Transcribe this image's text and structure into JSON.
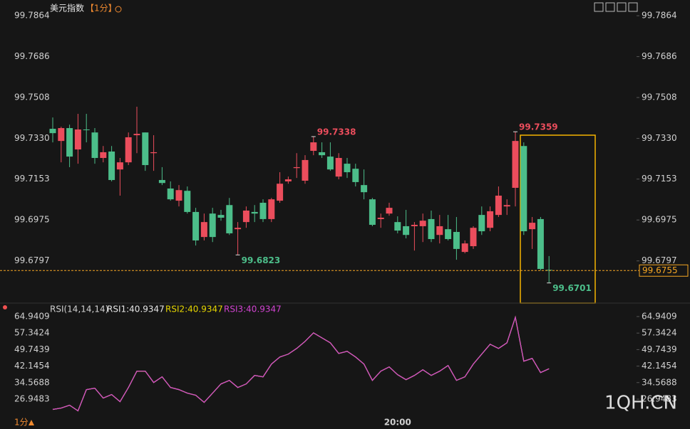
{
  "chart_data": [
    {
      "type": "candlestick",
      "title": "美元指数",
      "period": "【1分】",
      "period_label": "1分",
      "categories": [
        null,
        null,
        null,
        null,
        null,
        null,
        null,
        null,
        null,
        null,
        null,
        null,
        null,
        null,
        null,
        null,
        null,
        null,
        null,
        null,
        null,
        null,
        null,
        null,
        null,
        null,
        null,
        null,
        null,
        null,
        null,
        null,
        null,
        null,
        null,
        null,
        null,
        null,
        null,
        null,
        null,
        "20:00",
        null,
        null,
        null,
        null,
        null,
        null,
        null,
        null,
        null,
        null,
        null,
        null,
        null,
        null,
        null,
        null,
        null,
        null
      ],
      "open": [
        99.7372,
        99.7319,
        99.7375,
        99.7282,
        99.7369,
        99.7356,
        99.7245,
        99.7273,
        99.7195,
        99.7226,
        99.7344,
        99.7356,
        99.7266,
        99.7149,
        99.7112,
        99.7059,
        99.7102,
        99.701,
        99.6901,
        99.7003,
        99.6997,
        99.704,
        99.6935,
        99.6966,
        99.701,
        99.705,
        99.6979,
        99.7059,
        99.7143,
        99.7201,
        99.7146,
        99.7276,
        99.727,
        99.7251,
        99.7164,
        99.722,
        99.7198,
        99.7127,
        99.7065,
        99.6979,
        99.7003,
        99.6966,
        99.6948,
        99.6948,
        99.6948,
        99.6979,
        99.691,
        99.6935,
        99.6923,
        99.6836,
        99.6861,
        99.6997,
        99.6941,
        99.6997,
        99.7034,
        99.7115,
        99.7297,
        99.6935,
        99.6979,
        99.6758
      ],
      "high": [
        99.7421,
        99.7381,
        99.739,
        99.7437,
        99.7437,
        99.7375,
        99.7297,
        99.7297,
        99.7245,
        99.7356,
        99.7468,
        99.7356,
        99.7344,
        99.7205,
        99.7143,
        99.7127,
        99.7121,
        99.7028,
        99.7003,
        99.7028,
        99.7019,
        99.7071,
        99.6966,
        99.7034,
        99.704,
        99.7065,
        99.7071,
        99.7183,
        99.7164,
        99.7266,
        99.7257,
        99.7338,
        99.7313,
        99.7313,
        99.7266,
        99.7245,
        99.722,
        99.7195,
        99.7071,
        99.7003,
        99.705,
        99.6991,
        99.7019,
        99.6966,
        99.7003,
        99.7016,
        99.6997,
        99.6997,
        99.6988,
        99.6886,
        99.6948,
        99.7034,
        99.7034,
        99.7121,
        99.7065,
        99.7359,
        99.7313,
        99.6988,
        99.6988,
        99.6818
      ],
      "low": [
        99.7313,
        99.7226,
        99.7205,
        99.722,
        99.7313,
        99.722,
        99.7226,
        99.7143,
        99.7081,
        99.7214,
        99.7266,
        99.7189,
        99.7189,
        99.7127,
        99.7059,
        99.7034,
        99.7003,
        99.6864,
        99.6886,
        99.6879,
        99.6972,
        99.691,
        99.6823,
        99.6941,
        99.6966,
        99.6966,
        99.6966,
        99.705,
        99.7133,
        99.7158,
        99.7133,
        99.7257,
        99.7245,
        99.7189,
        99.7152,
        99.7158,
        99.7121,
        99.7065,
        99.6948,
        99.6941,
        99.6994,
        99.6917,
        99.6895,
        99.6842,
        99.6879,
        99.6879,
        99.6873,
        99.6886,
        99.6802,
        99.683,
        99.6849,
        99.691,
        99.6926,
        99.6988,
        99.6997,
        99.7034,
        99.691,
        99.6849,
        99.6756,
        99.6701
      ],
      "close": [
        99.7353,
        99.7375,
        99.7251,
        99.7369,
        99.7366,
        99.7245,
        99.727,
        99.7149,
        99.7226,
        99.7335,
        99.735,
        99.7214,
        99.727,
        99.7136,
        99.7065,
        99.7105,
        99.701,
        99.6886,
        99.6966,
        99.6901,
        99.6985,
        99.6917,
        99.6941,
        99.7016,
        99.7003,
        99.6979,
        99.7065,
        99.7133,
        99.7152,
        99.7205,
        99.7236,
        99.7313,
        99.7257,
        99.7195,
        99.7245,
        99.7183,
        99.714,
        99.7096,
        99.6954,
        99.6985,
        99.7028,
        99.6929,
        99.691,
        99.6954,
        99.6972,
        99.6892,
        99.6948,
        99.6892,
        99.6849,
        99.6873,
        99.6941,
        99.6926,
        99.7013,
        99.7081,
        99.704,
        99.7319,
        99.6926,
        99.6963,
        99.6762,
        99.6755
      ],
      "up_color": "#eb4d5c",
      "down_color": "#4cbe8a",
      "ylim": [
        99.6632,
        99.7917
      ],
      "yticks": [
        99.7864,
        99.7686,
        99.7508,
        {
          "value": 99.733,
          "label": "99.7330"
        },
        99.7153,
        99.6975,
        99.6797
      ],
      "last_price": 99.6755,
      "last_price_color": "#f5a623"
    },
    {
      "type": "line",
      "title": "RSI(14,14,14)",
      "series": [
        {
          "name": "RSI1:40.9347",
          "color": "#e6e6e6",
          "values": [
            22.22,
            22.87,
            24.18,
            21.57,
            31.35,
            32.0,
            27.44,
            29.07,
            25.81,
            32.33,
            39.83,
            39.83,
            34.61,
            37.22,
            32.33,
            31.35,
            29.72,
            28.74,
            25.48,
            29.72,
            33.96,
            35.59,
            32.33,
            33.96,
            37.87,
            37.22,
            43.09,
            46.35,
            47.66,
            50.27,
            53.53,
            57.44,
            55.16,
            52.87,
            47.98,
            48.96,
            46.35,
            43.09,
            35.59,
            39.83,
            41.79,
            38.2,
            35.92,
            37.87,
            40.48,
            37.87,
            39.83,
            42.44,
            35.59,
            37.22,
            43.09,
            47.66,
            52.22,
            50.27,
            52.87,
            64.61,
            44.4,
            45.7,
            39.18,
            40.9347
          ]
        },
        {
          "name": "RSI2:40.9347",
          "color": "#e6d600",
          "values": [
            22.22,
            22.87,
            24.18,
            21.57,
            31.35,
            32.0,
            27.44,
            29.07,
            25.81,
            32.33,
            39.83,
            39.83,
            34.61,
            37.22,
            32.33,
            31.35,
            29.72,
            28.74,
            25.48,
            29.72,
            33.96,
            35.59,
            32.33,
            33.96,
            37.87,
            37.22,
            43.09,
            46.35,
            47.66,
            50.27,
            53.53,
            57.44,
            55.16,
            52.87,
            47.98,
            48.96,
            46.35,
            43.09,
            35.59,
            39.83,
            41.79,
            38.2,
            35.92,
            37.87,
            40.48,
            37.87,
            39.83,
            42.44,
            35.59,
            37.22,
            43.09,
            47.66,
            52.22,
            50.27,
            52.87,
            64.61,
            44.4,
            45.7,
            39.18,
            40.9347
          ]
        },
        {
          "name": "RSI3:40.9347",
          "color": "#d043d0",
          "values": [
            22.22,
            22.87,
            24.18,
            21.57,
            31.35,
            32.0,
            27.44,
            29.07,
            25.81,
            32.33,
            39.83,
            39.83,
            34.61,
            37.22,
            32.33,
            31.35,
            29.72,
            28.74,
            25.48,
            29.72,
            33.96,
            35.59,
            32.33,
            33.96,
            37.87,
            37.22,
            43.09,
            46.35,
            47.66,
            50.27,
            53.53,
            57.44,
            55.16,
            52.87,
            47.98,
            48.96,
            46.35,
            43.09,
            35.59,
            39.83,
            41.79,
            38.2,
            35.92,
            37.87,
            40.48,
            37.87,
            39.83,
            42.44,
            35.59,
            37.22,
            43.09,
            47.66,
            52.22,
            50.27,
            52.87,
            64.61,
            44.4,
            45.7,
            39.18,
            40.9347
          ]
        }
      ],
      "ylim": [
        19.12,
        69.83
      ],
      "yticks": [
        64.9409,
        57.3424,
        49.7439,
        42.1454,
        34.5688,
        26.9483
      ],
      "watermark": "1QH.CN"
    }
  ]
}
